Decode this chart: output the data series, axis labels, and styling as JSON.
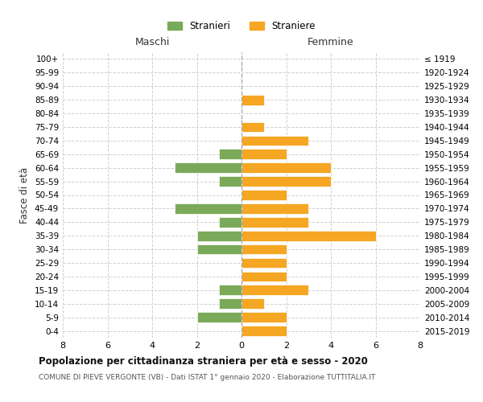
{
  "age_groups": [
    "100+",
    "95-99",
    "90-94",
    "85-89",
    "80-84",
    "75-79",
    "70-74",
    "65-69",
    "60-64",
    "55-59",
    "50-54",
    "45-49",
    "40-44",
    "35-39",
    "30-34",
    "25-29",
    "20-24",
    "15-19",
    "10-14",
    "5-9",
    "0-4"
  ],
  "birth_years": [
    "≤ 1919",
    "1920-1924",
    "1925-1929",
    "1930-1934",
    "1935-1939",
    "1940-1944",
    "1945-1949",
    "1950-1954",
    "1955-1959",
    "1960-1964",
    "1965-1969",
    "1970-1974",
    "1975-1979",
    "1980-1984",
    "1985-1989",
    "1990-1994",
    "1995-1999",
    "2000-2004",
    "2005-2009",
    "2010-2014",
    "2015-2019"
  ],
  "maschi": [
    0,
    0,
    0,
    0,
    0,
    0,
    0,
    1,
    3,
    1,
    0,
    3,
    1,
    2,
    2,
    0,
    0,
    1,
    1,
    2,
    0
  ],
  "femmine": [
    0,
    0,
    0,
    1,
    0,
    1,
    3,
    2,
    4,
    4,
    2,
    3,
    3,
    6,
    2,
    2,
    2,
    3,
    1,
    2,
    2
  ],
  "color_maschi": "#7aaa59",
  "color_femmine": "#f5a623",
  "title": "Popolazione per cittadinanza straniera per età e sesso - 2020",
  "subtitle": "COMUNE DI PIEVE VERGONTE (VB) - Dati ISTAT 1° gennaio 2020 - Elaborazione TUTTITALIA.IT",
  "xlabel_left": "Maschi",
  "xlabel_right": "Femmine",
  "ylabel_left": "Fasce di età",
  "legend_maschi": "Stranieri",
  "legend_femmine": "Straniere",
  "xlim": 8,
  "background_color": "#ffffff",
  "grid_color": "#cccccc"
}
